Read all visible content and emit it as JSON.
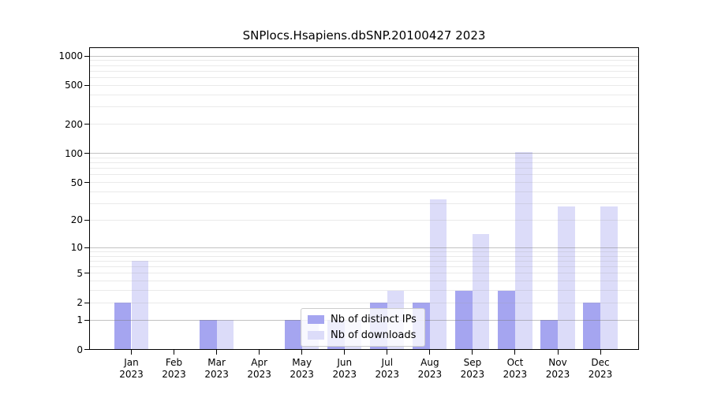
{
  "title": "SNPlocs.Hsapiens.dbSNP.20100427 2023",
  "legend": {
    "items": [
      {
        "label": "Nb of distinct IPs",
        "color": "#a5a5f0"
      },
      {
        "label": "Nb of downloads",
        "color": "#dcdcf9"
      }
    ]
  },
  "chart_data": {
    "type": "bar",
    "title": "SNPlocs.Hsapiens.dbSNP.20100427 2023",
    "categories": [
      "Jan 2023",
      "Feb 2023",
      "Mar 2023",
      "Apr 2023",
      "May 2023",
      "Jun 2023",
      "Jul 2023",
      "Aug 2023",
      "Sep 2023",
      "Oct 2023",
      "Nov 2023",
      "Dec 2023"
    ],
    "series": [
      {
        "name": "Nb of distinct IPs",
        "color": "#a5a5f0",
        "values": [
          2,
          0,
          1,
          0,
          1,
          1,
          2,
          2,
          3,
          3,
          1,
          2
        ]
      },
      {
        "name": "Nb of downloads",
        "color": "#dcdcf9",
        "values": [
          7,
          0,
          1,
          0,
          1,
          1,
          3,
          33,
          14,
          104,
          28,
          28
        ]
      }
    ],
    "xlabel": "",
    "ylabel": "",
    "yscale": "log10(value+1)",
    "ylim": [
      0,
      1000
    ],
    "yticks": [
      0,
      1,
      2,
      5,
      10,
      20,
      50,
      100,
      200,
      500,
      1000
    ],
    "grid": "horizontal major at 1,10,100,1000 plus minor log gridlines, drawn over bars",
    "legend_position": "inside lower-center-left",
    "colors": {
      "major_grid": "#787878",
      "minor_grid": "#c8c8c8",
      "axis": "#000000"
    }
  }
}
